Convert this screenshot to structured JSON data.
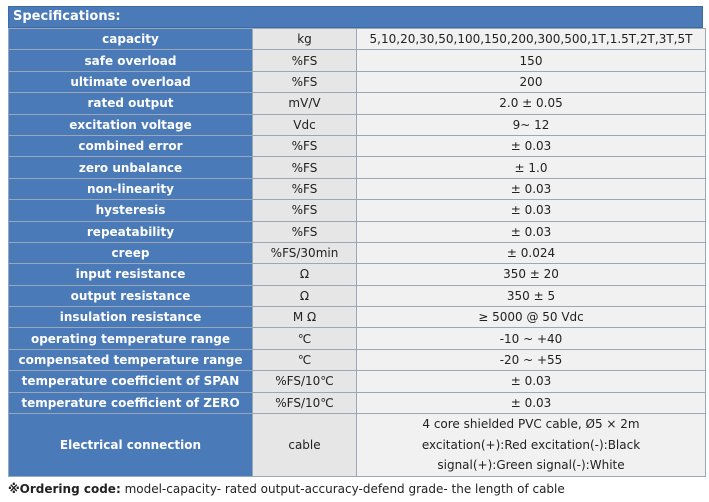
{
  "header": "Specifications:",
  "rows": [
    {
      "param": "capacity",
      "unit": "kg",
      "value": "5,10,20,30,50,100,150,200,300,500,1T,1.5T,2T,3T,5T"
    },
    {
      "param": "safe overload",
      "unit": "%FS",
      "value": "150"
    },
    {
      "param": "ultimate overload",
      "unit": "%FS",
      "value": "200"
    },
    {
      "param": "rated output",
      "unit": "mV/V",
      "value": "2.0 ± 0.05"
    },
    {
      "param": "excitation voltage",
      "unit": "Vdc",
      "value": "9~ 12"
    },
    {
      "param": "combined error",
      "unit": "%FS",
      "value": "± 0.03"
    },
    {
      "param": "zero unbalance",
      "unit": "%FS",
      "value": "± 1.0"
    },
    {
      "param": "non-linearity",
      "unit": "%FS",
      "value": "± 0.03"
    },
    {
      "param": "hysteresis",
      "unit": "%FS",
      "value": "± 0.03"
    },
    {
      "param": "repeatability",
      "unit": "%FS",
      "value": "± 0.03"
    },
    {
      "param": "creep",
      "unit": "%FS/30min",
      "value": "± 0.024"
    },
    {
      "param": "input resistance",
      "unit": "Ω",
      "value": "350 ± 20"
    },
    {
      "param": "output resistance",
      "unit": "Ω",
      "value": "350 ± 5"
    },
    {
      "param": "insulation resistance",
      "unit": "M Ω",
      "value": "≥ 5000 @ 50 Vdc"
    },
    {
      "param": "operating temperature range",
      "unit": "℃",
      "value": "-10 ~ +40"
    },
    {
      "param": "compensated temperature range",
      "unit": "℃",
      "value": "-20 ~ +55"
    },
    {
      "param": "temperature coefficient of SPAN",
      "unit": "%FS/10℃",
      "value": "± 0.03"
    },
    {
      "param": "temperature coefficient of ZERO",
      "unit": "%FS/10℃",
      "value": "± 0.03"
    }
  ],
  "electrical": {
    "param": "Electrical connection",
    "unit": "cable",
    "lines": [
      "4 core shielded PVC cable, Ø5 × 2m",
      "excitation(+):Red excitation(-):Black",
      "signal(+):Green  signal(-):White"
    ]
  },
  "footer": {
    "label": "※Ordering code:",
    "text": " model-capacity- rated output-accuracy-defend grade- the length of cable"
  }
}
